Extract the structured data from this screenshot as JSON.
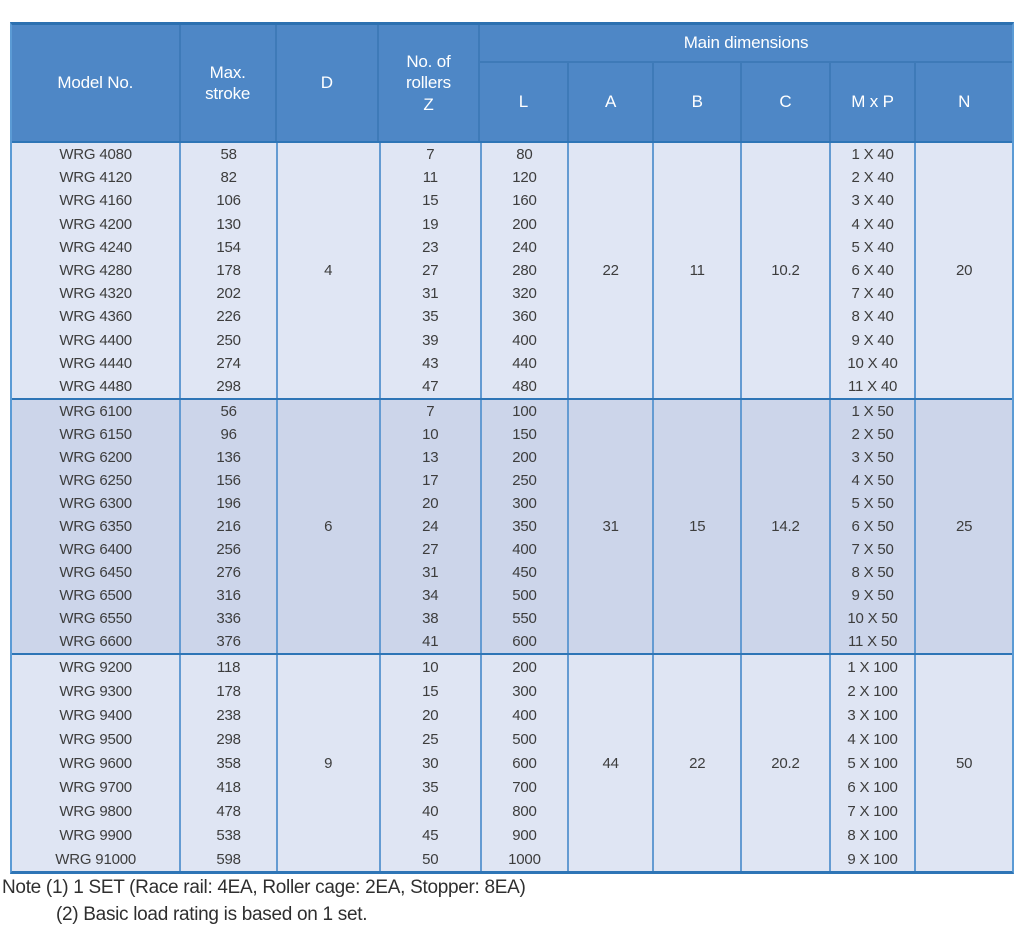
{
  "table": {
    "headers": {
      "model": "Model No.",
      "stroke_line1": "Max.",
      "stroke_line2": "stroke",
      "d": "D",
      "z_line1": "No. of",
      "z_line2": "rollers",
      "z_line3": "Z",
      "main_dimensions": "Main dimensions",
      "sub": {
        "l": "L",
        "a": "A",
        "b": "B",
        "c": "C",
        "mxp": "M x P",
        "n": "N"
      }
    },
    "groups": [
      {
        "d": "4",
        "a": "22",
        "b": "11",
        "c": "10.2",
        "n": "20",
        "rows": [
          {
            "model": "WRG 4080",
            "stroke": "58",
            "z": "7",
            "l": "80",
            "mxp": "1 X 40"
          },
          {
            "model": "WRG 4120",
            "stroke": "82",
            "z": "11",
            "l": "120",
            "mxp": "2 X 40"
          },
          {
            "model": "WRG 4160",
            "stroke": "106",
            "z": "15",
            "l": "160",
            "mxp": "3 X 40"
          },
          {
            "model": "WRG 4200",
            "stroke": "130",
            "z": "19",
            "l": "200",
            "mxp": "4 X 40"
          },
          {
            "model": "WRG 4240",
            "stroke": "154",
            "z": "23",
            "l": "240",
            "mxp": "5 X 40"
          },
          {
            "model": "WRG 4280",
            "stroke": "178",
            "z": "27",
            "l": "280",
            "mxp": "6 X 40"
          },
          {
            "model": "WRG 4320",
            "stroke": "202",
            "z": "31",
            "l": "320",
            "mxp": "7 X 40"
          },
          {
            "model": "WRG 4360",
            "stroke": "226",
            "z": "35",
            "l": "360",
            "mxp": "8 X 40"
          },
          {
            "model": "WRG 4400",
            "stroke": "250",
            "z": "39",
            "l": "400",
            "mxp": "9 X 40"
          },
          {
            "model": "WRG 4440",
            "stroke": "274",
            "z": "43",
            "l": "440",
            "mxp": "10 X 40"
          },
          {
            "model": "WRG 4480",
            "stroke": "298",
            "z": "47",
            "l": "480",
            "mxp": "11 X 40"
          }
        ]
      },
      {
        "d": "6",
        "a": "31",
        "b": "15",
        "c": "14.2",
        "n": "25",
        "rows": [
          {
            "model": "WRG 6100",
            "stroke": "56",
            "z": "7",
            "l": "100",
            "mxp": "1 X 50"
          },
          {
            "model": "WRG 6150",
            "stroke": "96",
            "z": "10",
            "l": "150",
            "mxp": "2 X 50"
          },
          {
            "model": "WRG 6200",
            "stroke": "136",
            "z": "13",
            "l": "200",
            "mxp": "3 X 50"
          },
          {
            "model": "WRG 6250",
            "stroke": "156",
            "z": "17",
            "l": "250",
            "mxp": "4 X 50"
          },
          {
            "model": "WRG 6300",
            "stroke": "196",
            "z": "20",
            "l": "300",
            "mxp": "5 X 50"
          },
          {
            "model": "WRG 6350",
            "stroke": "216",
            "z": "24",
            "l": "350",
            "mxp": "6 X 50"
          },
          {
            "model": "WRG 6400",
            "stroke": "256",
            "z": "27",
            "l": "400",
            "mxp": "7 X 50"
          },
          {
            "model": "WRG 6450",
            "stroke": "276",
            "z": "31",
            "l": "450",
            "mxp": "8 X 50"
          },
          {
            "model": "WRG 6500",
            "stroke": "316",
            "z": "34",
            "l": "500",
            "mxp": "9 X 50"
          },
          {
            "model": "WRG 6550",
            "stroke": "336",
            "z": "38",
            "l": "550",
            "mxp": "10 X 50"
          },
          {
            "model": "WRG 6600",
            "stroke": "376",
            "z": "41",
            "l": "600",
            "mxp": "11 X 50"
          }
        ]
      },
      {
        "d": "9",
        "a": "44",
        "b": "22",
        "c": "20.2",
        "n": "50",
        "rows": [
          {
            "model": "WRG 9200",
            "stroke": "118",
            "z": "10",
            "l": "200",
            "mxp": "1 X 100"
          },
          {
            "model": "WRG 9300",
            "stroke": "178",
            "z": "15",
            "l": "300",
            "mxp": "2 X 100"
          },
          {
            "model": "WRG 9400",
            "stroke": "238",
            "z": "20",
            "l": "400",
            "mxp": "3 X 100"
          },
          {
            "model": "WRG 9500",
            "stroke": "298",
            "z": "25",
            "l": "500",
            "mxp": "4 X 100"
          },
          {
            "model": "WRG 9600",
            "stroke": "358",
            "z": "30",
            "l": "600",
            "mxp": "5 X 100"
          },
          {
            "model": "WRG 9700",
            "stroke": "418",
            "z": "35",
            "l": "700",
            "mxp": "6 X 100"
          },
          {
            "model": "WRG 9800",
            "stroke": "478",
            "z": "40",
            "l": "800",
            "mxp": "7 X 100"
          },
          {
            "model": "WRG 9900",
            "stroke": "538",
            "z": "45",
            "l": "900",
            "mxp": "8 X 100"
          },
          {
            "model": "WRG 91000",
            "stroke": "598",
            "z": "50",
            "l": "1000",
            "mxp": "9 X 100"
          }
        ]
      }
    ]
  },
  "notes": {
    "line1": "Note (1) 1 SET (Race rail: 4EA, Roller cage: 2EA, Stopper: 8EA)",
    "line2": "(2) Basic load rating is based on 1 set."
  },
  "colors": {
    "header_bg": "#4e87c6",
    "header_separator": "#3e7ab8",
    "divider_blue": "#2e75b6",
    "body_vline": "#649bd2",
    "group_light_bg": "#e0e6f4",
    "group_dark_bg": "#ccd5ea",
    "body_text": "#3d3d3d",
    "header_text": "#ffffff"
  }
}
